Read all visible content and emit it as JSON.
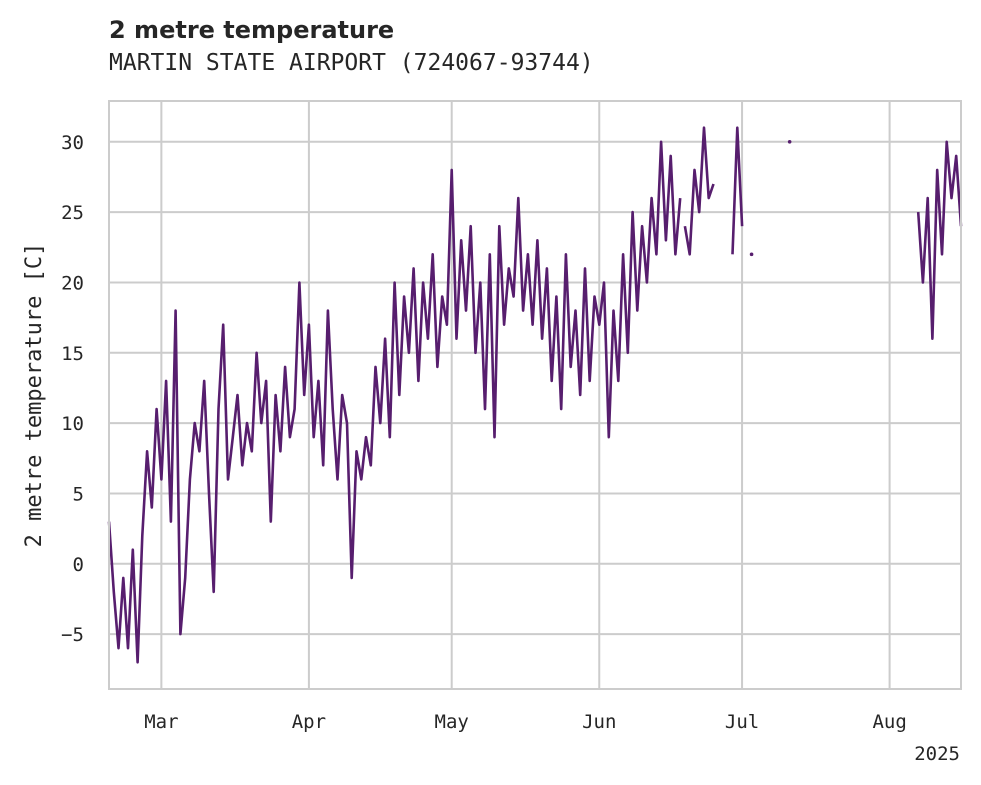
{
  "chart_data": {
    "type": "line",
    "title": "2 metre temperature",
    "subtitle": "MARTIN STATE AIRPORT (724067-93744)",
    "xlabel": "",
    "ylabel": "2 metre temperature [C]",
    "year_label": "2025",
    "x_ticks": [
      {
        "label": "Mar",
        "date": "2025-03-01"
      },
      {
        "label": "Apr",
        "date": "2025-04-01"
      },
      {
        "label": "May",
        "date": "2025-05-01"
      },
      {
        "label": "Jun",
        "date": "2025-06-01"
      },
      {
        "label": "Jul",
        "date": "2025-07-01"
      },
      {
        "label": "Aug",
        "date": "2025-08-01"
      }
    ],
    "y_ticks": [
      -5,
      0,
      5,
      10,
      15,
      20,
      25,
      30
    ],
    "xlim": [
      "2025-02-18",
      "2025-08-16"
    ],
    "ylim": [
      -8.9,
      32.9
    ],
    "grid": true,
    "line_color": "#571e6e",
    "series": [
      {
        "segments": [
          [
            [
              "2025-02-18",
              3
            ],
            [
              "2025-02-19",
              -2
            ],
            [
              "2025-02-20",
              -6
            ],
            [
              "2025-02-21",
              -1
            ],
            [
              "2025-02-22",
              -6
            ],
            [
              "2025-02-23",
              1
            ],
            [
              "2025-02-24",
              -7
            ],
            [
              "2025-02-25",
              2
            ],
            [
              "2025-02-26",
              8
            ],
            [
              "2025-02-27",
              4
            ],
            [
              "2025-02-28",
              11
            ],
            [
              "2025-03-01",
              6
            ],
            [
              "2025-03-02",
              13
            ],
            [
              "2025-03-03",
              3
            ],
            [
              "2025-03-04",
              18
            ],
            [
              "2025-03-05",
              -5
            ],
            [
              "2025-03-06",
              -1
            ],
            [
              "2025-03-07",
              6
            ],
            [
              "2025-03-08",
              10
            ],
            [
              "2025-03-09",
              8
            ],
            [
              "2025-03-10",
              13
            ],
            [
              "2025-03-11",
              5
            ],
            [
              "2025-03-12",
              -2
            ],
            [
              "2025-03-13",
              11
            ],
            [
              "2025-03-14",
              17
            ],
            [
              "2025-03-15",
              6
            ],
            [
              "2025-03-16",
              9
            ],
            [
              "2025-03-17",
              12
            ],
            [
              "2025-03-18",
              7
            ],
            [
              "2025-03-19",
              10
            ],
            [
              "2025-03-20",
              8
            ],
            [
              "2025-03-21",
              15
            ],
            [
              "2025-03-22",
              10
            ],
            [
              "2025-03-23",
              13
            ],
            [
              "2025-03-24",
              3
            ],
            [
              "2025-03-25",
              12
            ],
            [
              "2025-03-26",
              8
            ],
            [
              "2025-03-27",
              14
            ],
            [
              "2025-03-28",
              9
            ],
            [
              "2025-03-29",
              11
            ],
            [
              "2025-03-30",
              20
            ],
            [
              "2025-03-31",
              12
            ],
            [
              "2025-04-01",
              17
            ],
            [
              "2025-04-02",
              9
            ],
            [
              "2025-04-03",
              13
            ],
            [
              "2025-04-04",
              7
            ],
            [
              "2025-04-05",
              18
            ],
            [
              "2025-04-06",
              11
            ],
            [
              "2025-04-07",
              6
            ],
            [
              "2025-04-08",
              12
            ],
            [
              "2025-04-09",
              10
            ],
            [
              "2025-04-10",
              -1
            ],
            [
              "2025-04-11",
              8
            ],
            [
              "2025-04-12",
              6
            ],
            [
              "2025-04-13",
              9
            ],
            [
              "2025-04-14",
              7
            ],
            [
              "2025-04-15",
              14
            ],
            [
              "2025-04-16",
              10
            ],
            [
              "2025-04-17",
              16
            ],
            [
              "2025-04-18",
              9
            ],
            [
              "2025-04-19",
              20
            ],
            [
              "2025-04-20",
              12
            ],
            [
              "2025-04-21",
              19
            ],
            [
              "2025-04-22",
              15
            ],
            [
              "2025-04-23",
              21
            ],
            [
              "2025-04-24",
              13
            ],
            [
              "2025-04-25",
              20
            ],
            [
              "2025-04-26",
              16
            ],
            [
              "2025-04-27",
              22
            ],
            [
              "2025-04-28",
              14
            ],
            [
              "2025-04-29",
              19
            ],
            [
              "2025-04-30",
              17
            ],
            [
              "2025-05-01",
              28
            ],
            [
              "2025-05-02",
              16
            ],
            [
              "2025-05-03",
              23
            ],
            [
              "2025-05-04",
              18
            ],
            [
              "2025-05-05",
              24
            ],
            [
              "2025-05-06",
              15
            ],
            [
              "2025-05-07",
              20
            ],
            [
              "2025-05-08",
              11
            ],
            [
              "2025-05-09",
              22
            ],
            [
              "2025-05-10",
              9
            ],
            [
              "2025-05-11",
              24
            ],
            [
              "2025-05-12",
              17
            ],
            [
              "2025-05-13",
              21
            ],
            [
              "2025-05-14",
              19
            ],
            [
              "2025-05-15",
              26
            ],
            [
              "2025-05-16",
              18
            ],
            [
              "2025-05-17",
              22
            ],
            [
              "2025-05-18",
              17
            ],
            [
              "2025-05-19",
              23
            ],
            [
              "2025-05-20",
              16
            ],
            [
              "2025-05-21",
              21
            ],
            [
              "2025-05-22",
              13
            ],
            [
              "2025-05-23",
              19
            ],
            [
              "2025-05-24",
              11
            ],
            [
              "2025-05-25",
              22
            ],
            [
              "2025-05-26",
              14
            ],
            [
              "2025-05-27",
              18
            ],
            [
              "2025-05-28",
              12
            ],
            [
              "2025-05-29",
              21
            ],
            [
              "2025-05-30",
              13
            ],
            [
              "2025-05-31",
              19
            ],
            [
              "2025-06-01",
              17
            ],
            [
              "2025-06-02",
              20
            ],
            [
              "2025-06-03",
              9
            ],
            [
              "2025-06-04",
              18
            ],
            [
              "2025-06-05",
              13
            ],
            [
              "2025-06-06",
              22
            ],
            [
              "2025-06-07",
              15
            ],
            [
              "2025-06-08",
              25
            ],
            [
              "2025-06-09",
              18
            ],
            [
              "2025-06-10",
              24
            ],
            [
              "2025-06-11",
              20
            ],
            [
              "2025-06-12",
              26
            ],
            [
              "2025-06-13",
              22
            ],
            [
              "2025-06-14",
              30
            ],
            [
              "2025-06-15",
              23
            ],
            [
              "2025-06-16",
              29
            ],
            [
              "2025-06-17",
              22
            ],
            [
              "2025-06-18",
              26
            ]
          ],
          [
            [
              "2025-06-19",
              24
            ],
            [
              "2025-06-20",
              22
            ],
            [
              "2025-06-21",
              28
            ],
            [
              "2025-06-22",
              25
            ],
            [
              "2025-06-23",
              31
            ],
            [
              "2025-06-24",
              26
            ],
            [
              "2025-06-25",
              27
            ]
          ],
          [
            [
              "2025-06-29",
              22
            ],
            [
              "2025-06-30",
              31
            ],
            [
              "2025-07-01",
              24
            ]
          ],
          [
            [
              "2025-08-07",
              25
            ],
            [
              "2025-08-08",
              20
            ],
            [
              "2025-08-09",
              26
            ],
            [
              "2025-08-10",
              16
            ],
            [
              "2025-08-11",
              28
            ],
            [
              "2025-08-12",
              22
            ],
            [
              "2025-08-13",
              30
            ],
            [
              "2025-08-14",
              26
            ],
            [
              "2025-08-15",
              29
            ],
            [
              "2025-08-16",
              24
            ]
          ]
        ],
        "points": [
          [
            "2025-07-11",
            30
          ],
          [
            "2025-07-03",
            22
          ]
        ]
      }
    ]
  }
}
